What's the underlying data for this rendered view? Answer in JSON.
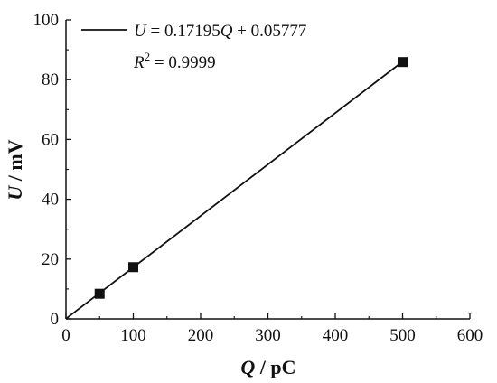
{
  "chart_data": {
    "type": "scatter",
    "xlabel": {
      "var": "Q",
      "unit": " / pC"
    },
    "ylabel": {
      "var": "U",
      "unit": " / mV"
    },
    "xlim": [
      0,
      600
    ],
    "ylim": [
      0,
      100
    ],
    "x_ticks": [
      0,
      100,
      200,
      300,
      400,
      500,
      600
    ],
    "y_ticks": [
      0,
      20,
      40,
      60,
      80,
      100
    ],
    "points": [
      {
        "x": 50,
        "y": 8.4
      },
      {
        "x": 100,
        "y": 17.3
      },
      {
        "x": 500,
        "y": 85.9
      }
    ],
    "fit": {
      "slope": 0.17195,
      "intercept": 0.05777,
      "x_range": [
        0,
        500
      ],
      "equation": {
        "lhs": "U",
        "eq": " = 0.17195",
        "var": "Q",
        "rest": " + 0.05777"
      },
      "r2": {
        "base": "R",
        "sup": "2",
        "rest": " = 0.9999"
      }
    },
    "grid": false,
    "legend_position": "top-left",
    "colors": {
      "line": "#111111",
      "marker": "#111111",
      "axis": "#111111"
    }
  }
}
